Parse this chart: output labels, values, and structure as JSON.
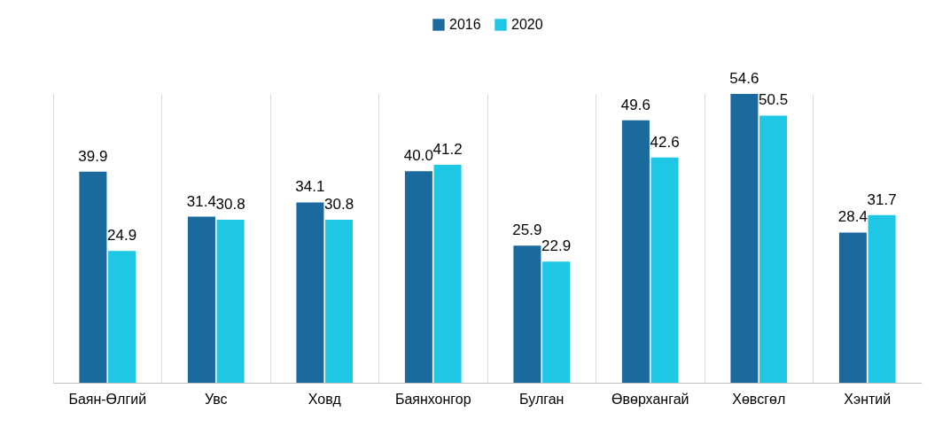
{
  "chart_data": {
    "type": "bar",
    "categories": [
      "Баян-Өлгий",
      "Увс",
      "Ховд",
      "Баянхонгор",
      "Булган",
      "Өвөрхангай",
      "Хөвсгөл",
      "Хэнтий"
    ],
    "series": [
      {
        "name": "2016",
        "color": "#1b6a9e",
        "values": [
          39.9,
          31.4,
          34.1,
          40.0,
          25.9,
          49.6,
          54.6,
          28.4
        ],
        "value_labels": [
          "39.9",
          "31.4",
          "34.1",
          "40.0",
          "25.9",
          "49.6",
          "54.6",
          "28.4"
        ]
      },
      {
        "name": "2020",
        "color": "#1ec8e4",
        "values": [
          24.9,
          30.8,
          30.8,
          41.2,
          22.9,
          42.6,
          50.5,
          31.7
        ],
        "value_labels": [
          "24.9",
          "30.8",
          "30.8",
          "41.2",
          "22.9",
          "42.6",
          "50.5",
          "31.7"
        ]
      }
    ],
    "legend": "top",
    "grid": "x"
  }
}
